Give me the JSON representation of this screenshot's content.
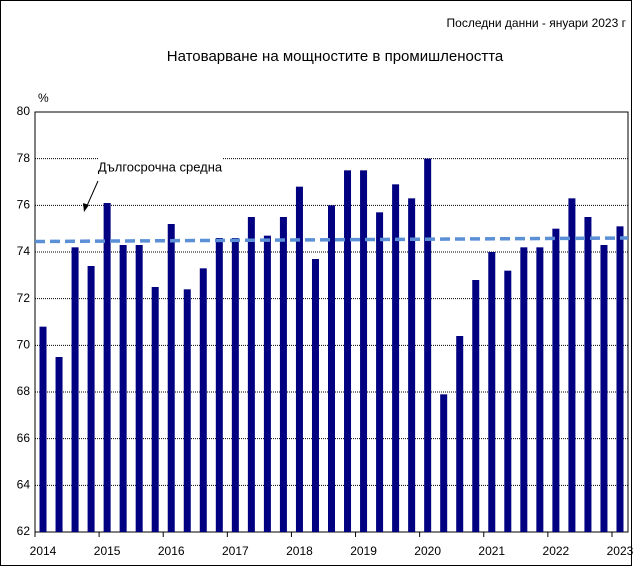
{
  "chart_data": {
    "type": "bar",
    "title": "Натоварване на мощностите в промишлеността",
    "note": "Последни данни - януари 2023 г",
    "y_label": "%",
    "categories": [
      "2014",
      null,
      null,
      null,
      "2015",
      null,
      null,
      null,
      "2016",
      null,
      null,
      null,
      "2017",
      null,
      null,
      null,
      "2018",
      null,
      null,
      null,
      "2019",
      null,
      null,
      null,
      "2020",
      null,
      null,
      null,
      "2021",
      null,
      null,
      null,
      "2022",
      null,
      null,
      null,
      "2023"
    ],
    "values": [
      70.8,
      69.5,
      74.2,
      73.4,
      76.1,
      74.3,
      74.3,
      72.5,
      75.2,
      72.4,
      73.3,
      74.6,
      74.6,
      75.5,
      74.7,
      75.5,
      76.8,
      73.7,
      76.0,
      77.5,
      77.5,
      75.7,
      76.9,
      76.3,
      78.0,
      67.9,
      70.4,
      72.8,
      74.0,
      73.2,
      74.2,
      74.2,
      75.0,
      76.3,
      75.5,
      74.3,
      75.1
    ],
    "color": "#000080",
    "reference_line": {
      "label": "Дългосрочна средна",
      "start": 74.45,
      "end": 74.6,
      "color": "#5b8fd6"
    },
    "ylim": [
      62,
      80
    ],
    "yticks": [
      62,
      64,
      66,
      68,
      70,
      72,
      74,
      76,
      78,
      80
    ],
    "grid": true
  }
}
